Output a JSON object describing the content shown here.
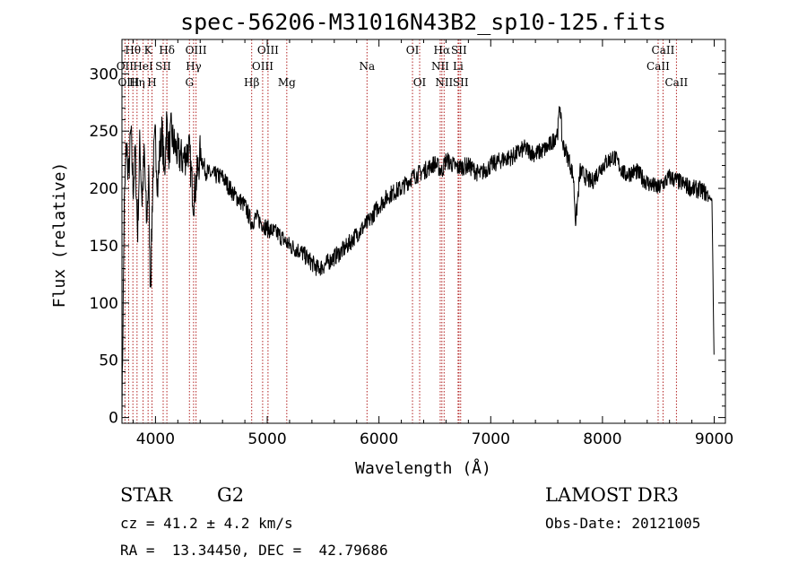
{
  "chart_data": {
    "type": "line",
    "title": "spec-56206-M31016N43B2_sp10-125.fits",
    "xlabel": "Wavelength (Å)",
    "ylabel": "Flux (relative)",
    "xlim": [
      3700,
      9100
    ],
    "ylim": [
      -5,
      330
    ],
    "xticks": [
      4000,
      5000,
      6000,
      7000,
      8000,
      9000
    ],
    "yticks": [
      0,
      50,
      100,
      150,
      200,
      250,
      300
    ],
    "series": [
      {
        "name": "flux",
        "x": [
          3700,
          3720,
          3740,
          3760,
          3780,
          3800,
          3820,
          3840,
          3860,
          3880,
          3900,
          3920,
          3940,
          3950,
          3960,
          3970,
          3980,
          4000,
          4020,
          4040,
          4060,
          4080,
          4100,
          4120,
          4140,
          4160,
          4200,
          4250,
          4300,
          4340,
          4400,
          4450,
          4500,
          4600,
          4700,
          4800,
          4861,
          4900,
          5000,
          5100,
          5200,
          5300,
          5400,
          5450,
          5500,
          5600,
          5700,
          5800,
          5900,
          6000,
          6100,
          6200,
          6300,
          6400,
          6500,
          6563,
          6600,
          6700,
          6800,
          6900,
          7000,
          7100,
          7200,
          7300,
          7400,
          7500,
          7550,
          7600,
          7620,
          7640,
          7700,
          7740,
          7760,
          7800,
          7900,
          8000,
          8100,
          8200,
          8300,
          8400,
          8500,
          8600,
          8700,
          8800,
          8900,
          8980,
          9000
        ],
        "y": [
          0,
          180,
          240,
          210,
          250,
          200,
          230,
          160,
          240,
          190,
          230,
          170,
          210,
          130,
          125,
          180,
          220,
          245,
          200,
          235,
          250,
          210,
          260,
          230,
          250,
          240,
          230,
          225,
          235,
          190,
          230,
          215,
          212,
          210,
          195,
          185,
          170,
          175,
          165,
          160,
          150,
          145,
          135,
          130,
          132,
          140,
          148,
          160,
          170,
          185,
          195,
          200,
          210,
          215,
          222,
          215,
          225,
          218,
          220,
          212,
          220,
          225,
          228,
          235,
          230,
          235,
          240,
          250,
          275,
          240,
          225,
          210,
          170,
          215,
          205,
          220,
          228,
          212,
          215,
          205,
          200,
          210,
          205,
          200,
          198,
          190,
          40
        ]
      }
    ],
    "line_markers": [
      {
        "label": "Hθ",
        "x": 3798,
        "row": 1
      },
      {
        "label": "OII",
        "x": 3727,
        "row": 2
      },
      {
        "label": "OIII",
        "x": 3760,
        "row": 3
      },
      {
        "label": "Hη",
        "x": 3835,
        "row": 3
      },
      {
        "label": "K",
        "x": 3934,
        "row": 1
      },
      {
        "label": "HeI",
        "x": 3889,
        "row": 2
      },
      {
        "label": "H",
        "x": 3969,
        "row": 3
      },
      {
        "label": "SII",
        "x": 4069,
        "row": 2
      },
      {
        "label": "Hδ",
        "x": 4102,
        "row": 1
      },
      {
        "label": "OIII",
        "x": 4363,
        "row": 1
      },
      {
        "label": "Hγ",
        "x": 4341,
        "row": 2
      },
      {
        "label": "G",
        "x": 4304,
        "row": 3
      },
      {
        "label": "OIII",
        "x": 5007,
        "row": 1
      },
      {
        "label": "OIII",
        "x": 4959,
        "row": 2
      },
      {
        "label": "Hβ",
        "x": 4861,
        "row": 3
      },
      {
        "label": "Mg",
        "x": 5175,
        "row": 3
      },
      {
        "label": "Na",
        "x": 5893,
        "row": 2
      },
      {
        "label": "OI",
        "x": 6300,
        "row": 1
      },
      {
        "label": "OI",
        "x": 6364,
        "row": 3
      },
      {
        "label": "Hα",
        "x": 6563,
        "row": 1
      },
      {
        "label": "NII",
        "x": 6548,
        "row": 2
      },
      {
        "label": "NII",
        "x": 6583,
        "row": 3
      },
      {
        "label": "SII",
        "x": 6716,
        "row": 1
      },
      {
        "label": "Li",
        "x": 6708,
        "row": 2
      },
      {
        "label": "SII",
        "x": 6731,
        "row": 3
      },
      {
        "label": "CaII",
        "x": 8542,
        "row": 1
      },
      {
        "label": "CaII",
        "x": 8498,
        "row": 2
      },
      {
        "label": "CaII",
        "x": 8662,
        "row": 3
      }
    ]
  },
  "info": {
    "object_class": "STAR",
    "subclass": "G2",
    "survey": "LAMOST DR3",
    "cz": "cz = 41.2 ± 4.2 km/s",
    "obs_date": "Obs-Date: 20121005",
    "coords": "RA =  13.34450, DEC =  42.79686"
  },
  "colors": {
    "marker_line": "#b22222",
    "spectrum": "#000000"
  }
}
